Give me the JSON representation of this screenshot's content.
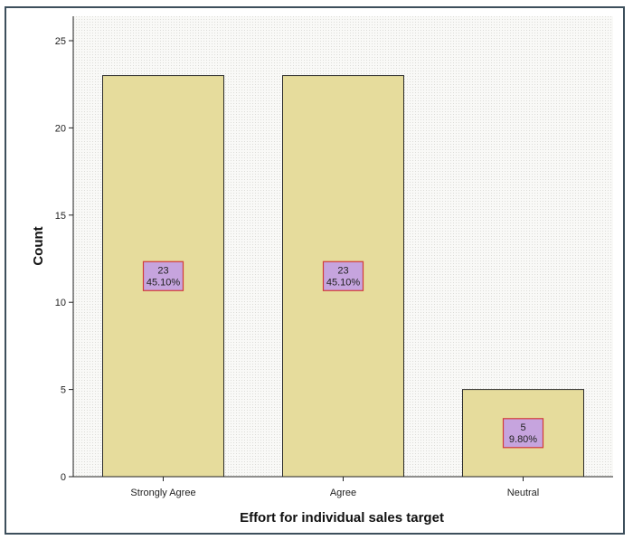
{
  "chart_data": {
    "type": "bar",
    "categories": [
      "Strongly Agree",
      "Agree",
      "Neutral"
    ],
    "values": [
      23,
      23,
      5
    ],
    "percent_labels": [
      "45.10%",
      "45.10%",
      "9.80%"
    ],
    "count_labels": [
      "23",
      "23",
      "5"
    ],
    "xlabel": "Effort for individual sales target",
    "ylabel": "Count",
    "ylim": [
      0,
      26
    ],
    "yticks": [
      "0",
      "5",
      "10",
      "15",
      "20",
      "25"
    ],
    "ytick_values": [
      0,
      5,
      10,
      15,
      20,
      25
    ],
    "grid": false,
    "legend": "none",
    "colors": {
      "bar_fill": "#e6dc9c",
      "bar_stroke": "#2b2b2b",
      "label_fill": "#c6a4de",
      "label_stroke": "#d23a3a",
      "frame": "#3d4f5c",
      "plot_bg": "#f7f7f5"
    }
  }
}
